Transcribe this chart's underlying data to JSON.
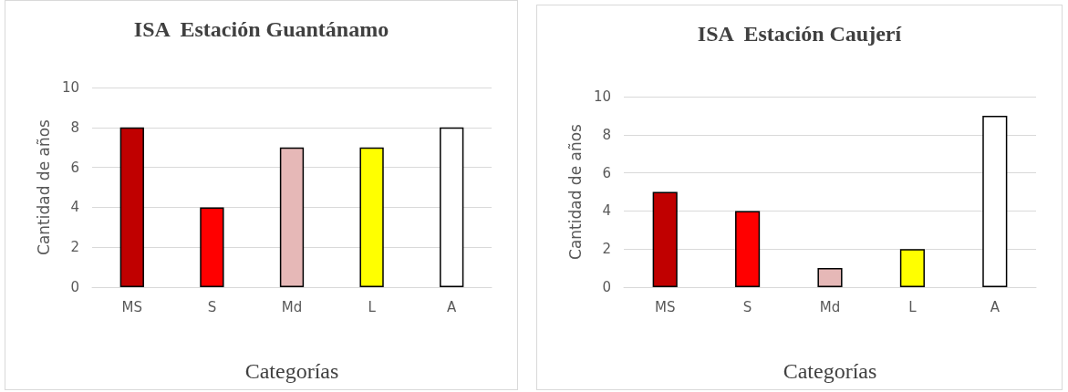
{
  "chart_data": [
    {
      "type": "bar",
      "title": "ISA  Estación Guantánamo",
      "xlabel": "Categorías",
      "ylabel": "Cantidad de años",
      "categories": [
        "MS",
        "S",
        "Md",
        "L",
        "A"
      ],
      "values": [
        8,
        4,
        7,
        7,
        8
      ],
      "colors": [
        "#c00000",
        "#ff0000",
        "#e6b8b7",
        "#ffff00",
        "#ffffff"
      ],
      "ylim": [
        0,
        10
      ],
      "yticks": [
        0,
        2,
        4,
        6,
        8,
        10
      ],
      "grid": "y"
    },
    {
      "type": "bar",
      "title": "ISA  Estación Caujerí",
      "xlabel": "Categorías",
      "ylabel": "Cantidad de años",
      "categories": [
        "MS",
        "S",
        "Md",
        "L",
        "A"
      ],
      "values": [
        5,
        4,
        1,
        2,
        9
      ],
      "colors": [
        "#c00000",
        "#ff0000",
        "#e6b8b7",
        "#ffff00",
        "#ffffff"
      ],
      "ylim": [
        0,
        10
      ],
      "yticks": [
        0,
        2,
        4,
        6,
        8,
        10
      ],
      "grid": "y"
    }
  ]
}
